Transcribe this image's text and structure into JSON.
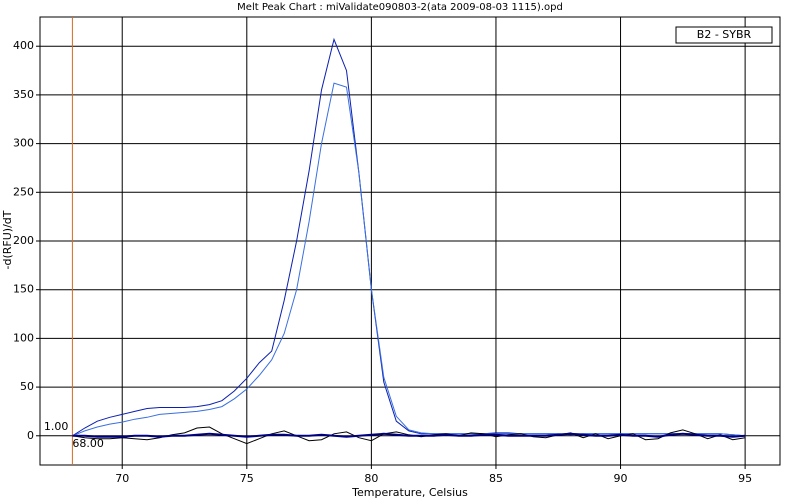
{
  "chart_data": {
    "type": "line",
    "title": "Melt Peak Chart : miValidate090803-2(ata 2009-08-03 1115).opd",
    "x_label": "Temperature, Celsius",
    "y_label": "-d(RFU)/dT",
    "legend_label": "B2 - SYBR",
    "x": [
      68,
      68.5,
      69,
      69.5,
      70,
      70.5,
      71,
      71.5,
      72,
      72.5,
      73,
      73.5,
      74,
      74.5,
      75,
      75.5,
      76,
      76.5,
      77,
      77.5,
      78,
      78.5,
      79,
      79.5,
      80,
      80.5,
      81,
      81.5,
      82,
      82.5,
      83,
      83.5,
      84,
      84.5,
      85,
      85.5,
      86,
      86.5,
      87,
      87.5,
      88,
      88.5,
      89,
      89.5,
      90,
      90.5,
      91,
      91.5,
      92,
      92.5,
      93,
      93.5,
      94,
      94.5,
      95
    ],
    "series": [
      {
        "color": "#0a1fb0",
        "values": [
          0,
          8,
          15,
          19,
          22,
          25,
          28,
          29,
          29,
          29,
          30,
          32,
          36,
          46,
          59,
          75,
          87,
          139,
          200,
          272,
          355,
          407,
          375,
          270,
          150,
          55,
          15,
          5,
          2,
          2,
          2,
          2,
          2,
          2,
          3,
          3,
          2,
          2,
          2,
          2,
          1,
          2,
          2,
          2,
          2,
          2,
          2,
          2,
          2,
          2,
          2,
          2,
          2,
          1,
          0
        ]
      },
      {
        "color": "#3a6fe0",
        "values": [
          0,
          5,
          9,
          12,
          14,
          17,
          19,
          22,
          23,
          24,
          25,
          27,
          30,
          38,
          48,
          62,
          78,
          105,
          150,
          220,
          300,
          362,
          358,
          270,
          150,
          60,
          20,
          6,
          3,
          2,
          2,
          2,
          2,
          2,
          2,
          2,
          2,
          2,
          2,
          2,
          2,
          2,
          2,
          2,
          2,
          2,
          2,
          2,
          2,
          2,
          2,
          2,
          2,
          1,
          0
        ]
      },
      {
        "color": "#000000",
        "values": [
          0,
          -2,
          -3,
          -3,
          -2,
          -3,
          -4,
          -2,
          1,
          3,
          8,
          9,
          2,
          -3,
          -8,
          -3,
          2,
          5,
          0,
          -5,
          -4,
          2,
          4,
          -2,
          -5,
          2,
          4,
          1,
          -1,
          1,
          2,
          0,
          3,
          2,
          -1,
          1,
          2,
          -1,
          -2,
          1,
          3,
          -2,
          2,
          -3,
          0,
          2,
          -4,
          -3,
          3,
          6,
          2,
          -3,
          1,
          -4,
          -2
        ]
      },
      {
        "color": "#000080",
        "values": [
          0,
          0,
          -1,
          -1,
          -1,
          0,
          0,
          -1,
          0,
          0,
          1,
          2,
          1,
          0,
          -1,
          0,
          1,
          1,
          0,
          0,
          1,
          0,
          -1,
          0,
          1,
          2,
          1,
          0,
          0,
          0,
          1,
          0,
          0,
          1,
          1,
          0,
          0,
          0,
          0,
          1,
          2,
          1,
          0,
          0,
          1,
          0,
          0,
          -1,
          1,
          2,
          1,
          0,
          0,
          -1,
          0
        ]
      }
    ],
    "marker": {
      "x": {
        "value": 68,
        "label": "68.00"
      },
      "y": {
        "value": 1,
        "label": "1.00"
      },
      "color": "#d2691e"
    },
    "xlim": [
      66.7,
      96.4
    ],
    "ylim": [
      -30,
      430
    ],
    "xticks": [
      70,
      75,
      80,
      85,
      90,
      95
    ],
    "yticks": [
      0,
      50,
      100,
      150,
      200,
      250,
      300,
      350,
      400
    ],
    "grid": true
  }
}
